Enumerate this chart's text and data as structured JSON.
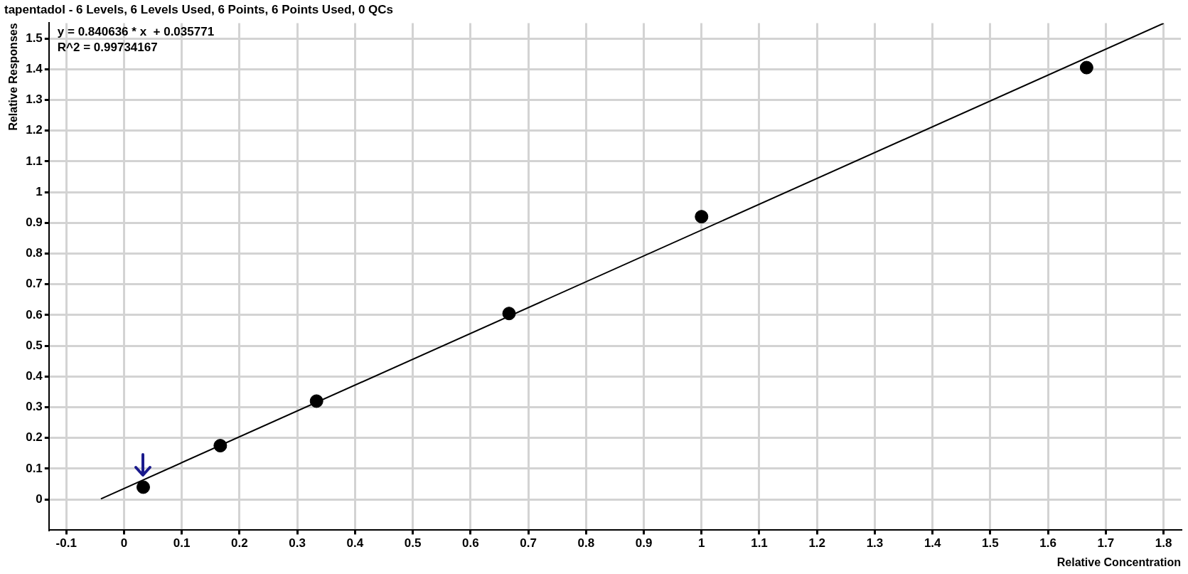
{
  "chart_data": {
    "type": "scatter",
    "title": "tapentadol - 6 Levels, 6 Levels Used, 6 Points, 6 Points Used, 0 QCs",
    "xlabel": "Relative Concentration",
    "ylabel": "Relative Responses",
    "annotations": [
      "y = 0.840636 * x  + 0.035771",
      "R^2 = 0.99734167"
    ],
    "series": [
      {
        "color": "#000000",
        "marker": "circle",
        "x": [
          0.0333,
          0.1667,
          0.3333,
          0.6667,
          1.0,
          1.6667
        ],
        "values": [
          0.04,
          0.175,
          0.32,
          0.605,
          0.92,
          1.405
        ]
      },
      {
        "type": "line",
        "color": "#000000",
        "marker": "none",
        "x": [
          -0.04,
          1.8
        ],
        "values": [
          0.002,
          1.549
        ]
      }
    ],
    "xlim": [
      -0.13,
      1.83
    ],
    "xticks": [
      -0.1,
      0,
      0.1,
      0.2,
      0.3,
      0.4,
      0.5,
      0.6,
      0.7,
      0.8,
      0.9,
      1,
      1.1,
      1.2,
      1.3,
      1.4,
      1.5,
      1.6,
      1.7,
      1.8
    ],
    "ylim": [
      -0.1,
      1.55
    ],
    "yticks": [
      0,
      0.1,
      0.2,
      0.3,
      0.4,
      0.5,
      0.6,
      0.7,
      0.8,
      0.9,
      1,
      1.1,
      1.2,
      1.3,
      1.4,
      1.5
    ],
    "grid": true,
    "legend": false
  }
}
